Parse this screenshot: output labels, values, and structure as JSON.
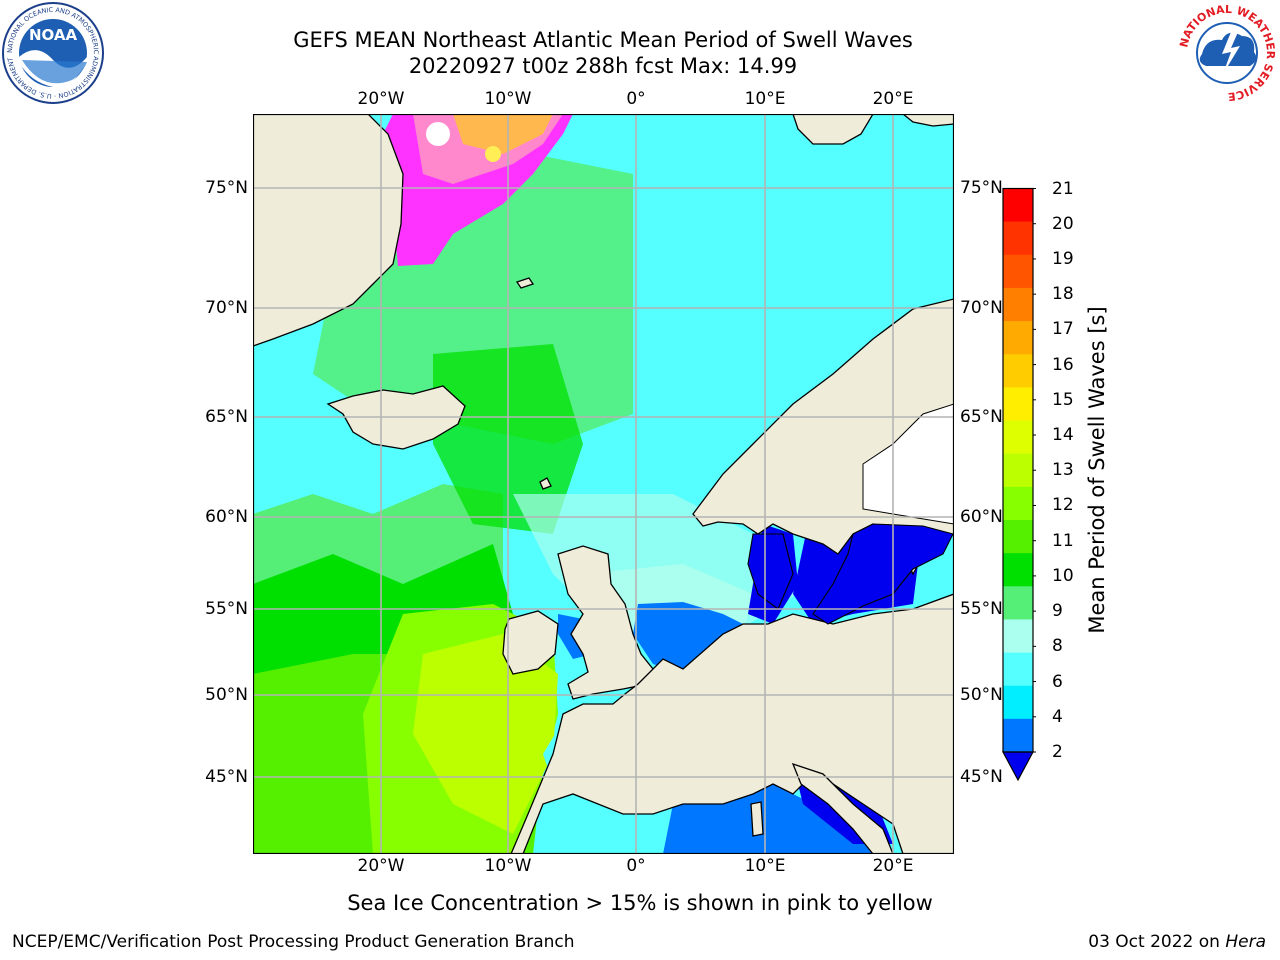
{
  "title": {
    "line1": "GEFS MEAN Northeast Atlantic Mean Period of Swell Waves",
    "line2": "20220927 t00z 288h fcst   Max: 14.99"
  },
  "map": {
    "longitude_ticks": [
      "20°W",
      "10°W",
      "0°",
      "10°E",
      "20°E"
    ],
    "latitude_ticks": [
      "75°N",
      "70°N",
      "65°N",
      "60°N",
      "55°N",
      "50°N",
      "45°N"
    ],
    "land_color": "#efedda",
    "grid_color": "#b4b4b4",
    "coastline_color": "#000000"
  },
  "colorbar": {
    "label": "Mean Period of Swell Waves [s]",
    "ticks": [
      "21",
      "20",
      "19",
      "18",
      "17",
      "16",
      "15",
      "14",
      "13",
      "12",
      "11",
      "10",
      "9",
      "8",
      "6",
      "4",
      "2"
    ],
    "colors_top_to_bottom": [
      "#ff0000",
      "#ff3300",
      "#ff5500",
      "#ff7f00",
      "#ffaa00",
      "#ffcc00",
      "#ffee00",
      "#ddff00",
      "#bbff00",
      "#88ff00",
      "#55f000",
      "#00e000",
      "#55ee77",
      "#aaffee",
      "#55ffff",
      "#00eeff",
      "#0077ff"
    ],
    "underflow_color": "#0000ee"
  },
  "note": "Sea Ice Concentration > 15% is shown in pink to yellow",
  "footer": {
    "left": "NCEP/EMC/Verification Post Processing Product Generation Branch",
    "right_prefix": "03 Oct 2022 on ",
    "right_machine": "Hera"
  },
  "logos": {
    "noaa_text": "NOAA",
    "noaa_ring_text": "NATIONAL OCEANIC AND ATMOSPHERIC ADMINISTRATION · U.S. DEPARTMENT OF COMMERCE",
    "nws_ring_text": "NATIONAL WEATHER SERVICE"
  }
}
